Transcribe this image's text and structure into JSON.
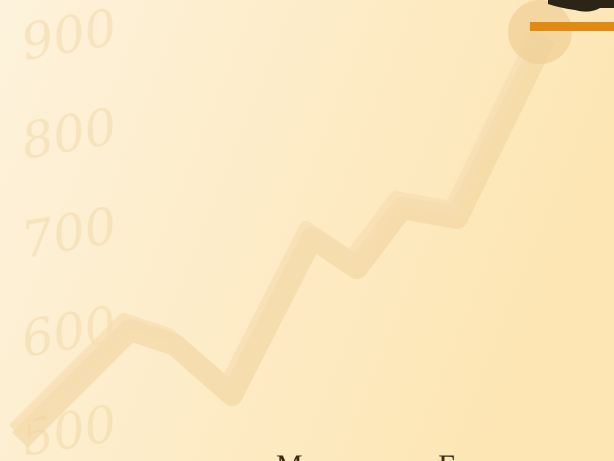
{
  "background_labels": [
    "900",
    "800",
    "700",
    "600",
    "500"
  ],
  "footer": {
    "text": "Ministry of Finance"
  }
}
